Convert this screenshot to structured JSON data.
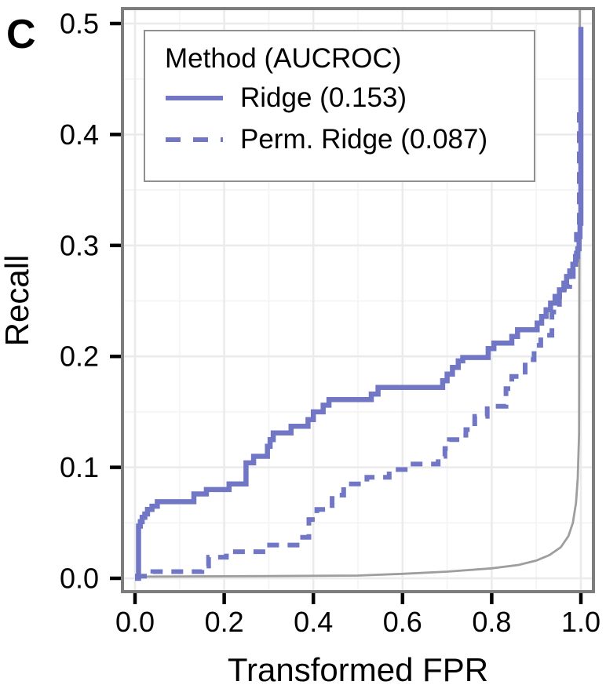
{
  "panel_label": "C",
  "colors": {
    "accent": "#7177c5",
    "reference_line": "#9e9e9e",
    "panel_border": "#7d7d7d",
    "grid_major": "#ebebeb",
    "grid_minor": "#f5f5f5",
    "tick": "#000000",
    "legend_border": "#8f8f8f",
    "text": "#000000"
  },
  "legend": {
    "title": "Method (AUCROC)",
    "items": [
      {
        "label": "Ridge (0.153)",
        "style": "solid"
      },
      {
        "label": "Perm. Ridge (0.087)",
        "style": "dashed"
      }
    ]
  },
  "chart_data": {
    "type": "line",
    "title": "",
    "xlabel": "Transformed FPR",
    "ylabel": "Recall",
    "xlim": [
      0.0,
      1.0
    ],
    "ylim": [
      0.0,
      0.5
    ],
    "x_ticks": [
      0.0,
      0.2,
      0.4,
      0.6,
      0.8,
      1.0
    ],
    "x_tick_labels": [
      "0.0",
      "0.2",
      "0.4",
      "0.6",
      "0.8",
      "1.0"
    ],
    "y_ticks": [
      0.0,
      0.1,
      0.2,
      0.3,
      0.4,
      0.5
    ],
    "y_tick_labels": [
      "0.0",
      "0.1",
      "0.2",
      "0.3",
      "0.4",
      "0.5"
    ],
    "x_minor_ticks": [
      0.1,
      0.3,
      0.5,
      0.7,
      0.9
    ],
    "y_minor_ticks": [
      0.05,
      0.15,
      0.25,
      0.35,
      0.45
    ],
    "grid": true,
    "legend_position": "top-left",
    "series": [
      {
        "name": "reference diagonal (transformed)",
        "role": "reference",
        "line": "solid",
        "step": false,
        "points": [
          [
            0.0,
            0.0015
          ],
          [
            0.3,
            0.002
          ],
          [
            0.5,
            0.0025
          ],
          [
            0.6,
            0.004
          ],
          [
            0.7,
            0.006
          ],
          [
            0.8,
            0.009
          ],
          [
            0.86,
            0.012
          ],
          [
            0.9,
            0.016
          ],
          [
            0.93,
            0.021
          ],
          [
            0.955,
            0.028
          ],
          [
            0.972,
            0.038
          ],
          [
            0.982,
            0.05
          ],
          [
            0.989,
            0.068
          ],
          [
            0.993,
            0.09
          ],
          [
            0.996,
            0.13
          ],
          [
            0.9975,
            0.52
          ]
        ]
      },
      {
        "name": "Perm. Ridge (0.087)",
        "role": "series",
        "line": "dashed",
        "step": true,
        "points": [
          [
            0.0,
            0.002
          ],
          [
            0.04,
            0.006
          ],
          [
            0.15,
            0.011
          ],
          [
            0.165,
            0.019
          ],
          [
            0.205,
            0.024
          ],
          [
            0.295,
            0.03
          ],
          [
            0.37,
            0.037
          ],
          [
            0.39,
            0.053
          ],
          [
            0.408,
            0.062
          ],
          [
            0.442,
            0.075
          ],
          [
            0.468,
            0.085
          ],
          [
            0.52,
            0.091
          ],
          [
            0.57,
            0.098
          ],
          [
            0.615,
            0.103
          ],
          [
            0.68,
            0.11
          ],
          [
            0.695,
            0.117
          ],
          [
            0.705,
            0.125
          ],
          [
            0.73,
            0.129
          ],
          [
            0.742,
            0.134
          ],
          [
            0.762,
            0.146
          ],
          [
            0.79,
            0.155
          ],
          [
            0.832,
            0.171
          ],
          [
            0.845,
            0.182
          ],
          [
            0.875,
            0.197
          ],
          [
            0.895,
            0.21
          ],
          [
            0.91,
            0.219
          ],
          [
            0.935,
            0.24
          ],
          [
            0.952,
            0.255
          ],
          [
            0.963,
            0.263
          ],
          [
            0.975,
            0.272
          ],
          [
            0.983,
            0.287
          ],
          [
            0.99,
            0.31
          ],
          [
            0.9965,
            0.42
          ]
        ]
      },
      {
        "name": "Ridge (0.153)",
        "role": "series",
        "line": "solid",
        "step": true,
        "points": [
          [
            0.0,
            0.0
          ],
          [
            0.008,
            0.047
          ],
          [
            0.012,
            0.051
          ],
          [
            0.016,
            0.055
          ],
          [
            0.022,
            0.058
          ],
          [
            0.028,
            0.062
          ],
          [
            0.038,
            0.065
          ],
          [
            0.05,
            0.069
          ],
          [
            0.132,
            0.076
          ],
          [
            0.16,
            0.08
          ],
          [
            0.211,
            0.085
          ],
          [
            0.249,
            0.104
          ],
          [
            0.266,
            0.11
          ],
          [
            0.297,
            0.119
          ],
          [
            0.303,
            0.125
          ],
          [
            0.31,
            0.131
          ],
          [
            0.35,
            0.137
          ],
          [
            0.388,
            0.143
          ],
          [
            0.4,
            0.15
          ],
          [
            0.422,
            0.156
          ],
          [
            0.435,
            0.161
          ],
          [
            0.53,
            0.166
          ],
          [
            0.545,
            0.172
          ],
          [
            0.69,
            0.178
          ],
          [
            0.7,
            0.184
          ],
          [
            0.712,
            0.19
          ],
          [
            0.725,
            0.196
          ],
          [
            0.735,
            0.199
          ],
          [
            0.792,
            0.207
          ],
          [
            0.805,
            0.212
          ],
          [
            0.845,
            0.218
          ],
          [
            0.858,
            0.224
          ],
          [
            0.902,
            0.23
          ],
          [
            0.912,
            0.236
          ],
          [
            0.922,
            0.242
          ],
          [
            0.932,
            0.248
          ],
          [
            0.942,
            0.254
          ],
          [
            0.952,
            0.26
          ],
          [
            0.962,
            0.266
          ],
          [
            0.968,
            0.272
          ],
          [
            0.975,
            0.277
          ],
          [
            0.982,
            0.283
          ],
          [
            0.988,
            0.29
          ],
          [
            0.993,
            0.297
          ],
          [
            0.996,
            0.308
          ],
          [
            0.998,
            0.32
          ],
          [
            1.0,
            0.497
          ]
        ]
      }
    ]
  }
}
